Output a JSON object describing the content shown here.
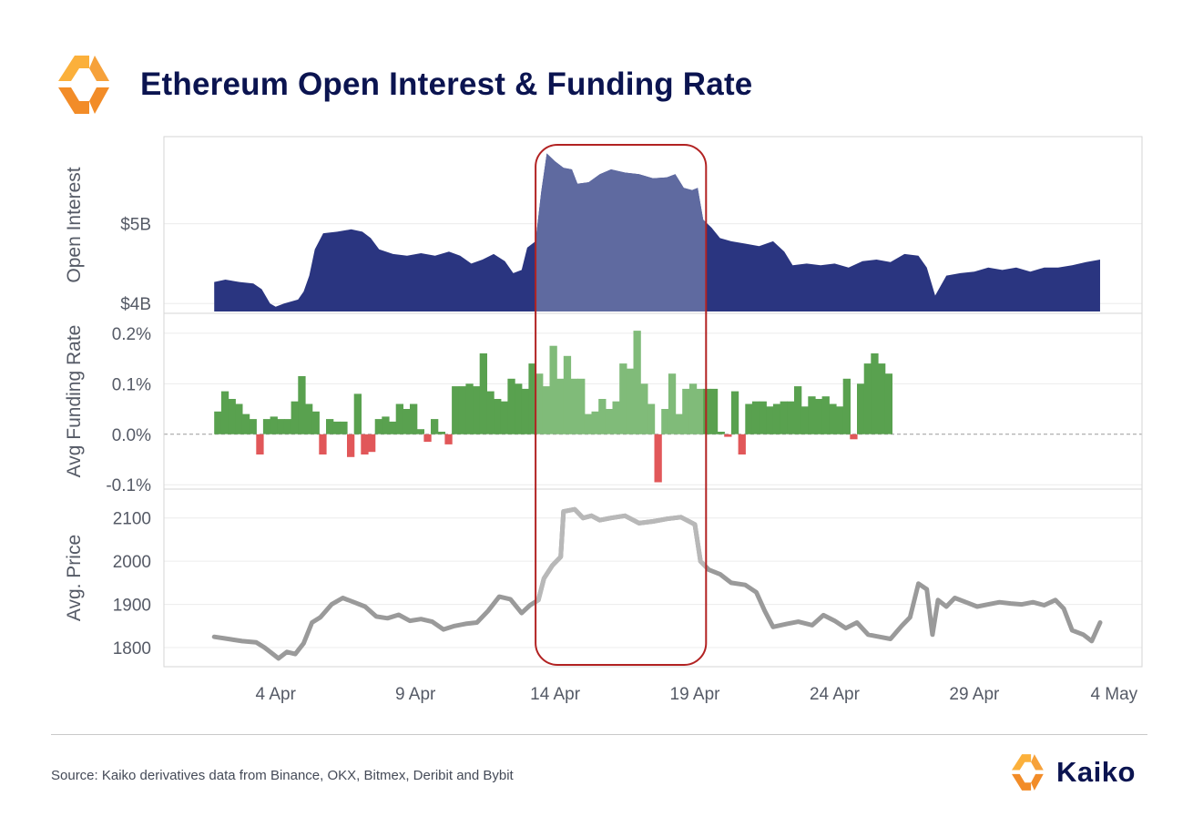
{
  "title": "Ethereum Open Interest & Funding Rate",
  "source": "Source: Kaiko derivatives data from Binance, OKX, Bitmex, Deribit and Bybit",
  "brand": "Kaiko",
  "colors": {
    "title": "#0b1450",
    "open_interest": "#2a3580",
    "oi_highlight": "#5f6aa0",
    "funding_positive": "#59a14f",
    "funding_positive_highlight": "#80bb79",
    "funding_negative": "#e15759",
    "price": "#9a9a9a",
    "price_highlight": "#b8b8b8",
    "highlight_box": "#b22222",
    "logo_orange": "#f28c28",
    "logo_yellow": "#fbb03b"
  },
  "chart_data": {
    "type": "area+bar+line",
    "x_ticks": [
      "4 Apr",
      "9 Apr",
      "14 Apr",
      "19 Apr",
      "24 Apr",
      "29 Apr",
      "4 May"
    ],
    "x_tick_days": [
      4,
      9,
      14,
      19,
      24,
      29,
      34
    ],
    "x_range_days": [
      0,
      35
    ],
    "highlight_range_days": [
      13.3,
      19.4
    ],
    "panels": [
      {
        "name": "open_interest",
        "ylabel": "Open Interest",
        "type": "area",
        "yticks": [
          "$4B",
          "$5B"
        ],
        "ytick_values": [
          4.0,
          5.0
        ],
        "ylim": [
          3.9,
          6.0
        ],
        "points": [
          [
            1.8,
            4.27
          ],
          [
            2.2,
            4.3
          ],
          [
            2.7,
            4.27
          ],
          [
            3.2,
            4.25
          ],
          [
            3.5,
            4.18
          ],
          [
            3.8,
            4.0
          ],
          [
            4.0,
            3.96
          ],
          [
            4.3,
            4.0
          ],
          [
            4.8,
            4.05
          ],
          [
            5.0,
            4.15
          ],
          [
            5.2,
            4.35
          ],
          [
            5.4,
            4.68
          ],
          [
            5.7,
            4.88
          ],
          [
            6.2,
            4.9
          ],
          [
            6.7,
            4.93
          ],
          [
            7.1,
            4.9
          ],
          [
            7.4,
            4.82
          ],
          [
            7.7,
            4.68
          ],
          [
            8.2,
            4.62
          ],
          [
            8.7,
            4.6
          ],
          [
            9.2,
            4.63
          ],
          [
            9.7,
            4.6
          ],
          [
            10.2,
            4.65
          ],
          [
            10.6,
            4.6
          ],
          [
            11.0,
            4.5
          ],
          [
            11.4,
            4.55
          ],
          [
            11.8,
            4.62
          ],
          [
            12.2,
            4.53
          ],
          [
            12.5,
            4.38
          ],
          [
            12.8,
            4.42
          ],
          [
            13.0,
            4.7
          ],
          [
            13.3,
            4.78
          ],
          [
            13.5,
            5.4
          ],
          [
            13.7,
            5.88
          ],
          [
            14.0,
            5.78
          ],
          [
            14.3,
            5.7
          ],
          [
            14.6,
            5.68
          ],
          [
            14.8,
            5.5
          ],
          [
            15.2,
            5.52
          ],
          [
            15.6,
            5.62
          ],
          [
            16.0,
            5.68
          ],
          [
            16.5,
            5.64
          ],
          [
            17.0,
            5.62
          ],
          [
            17.5,
            5.57
          ],
          [
            18.0,
            5.58
          ],
          [
            18.3,
            5.62
          ],
          [
            18.6,
            5.45
          ],
          [
            18.9,
            5.42
          ],
          [
            19.1,
            5.45
          ],
          [
            19.3,
            5.05
          ],
          [
            19.6,
            4.95
          ],
          [
            19.9,
            4.82
          ],
          [
            20.3,
            4.78
          ],
          [
            20.8,
            4.75
          ],
          [
            21.3,
            4.72
          ],
          [
            21.8,
            4.78
          ],
          [
            22.2,
            4.65
          ],
          [
            22.5,
            4.48
          ],
          [
            23.0,
            4.5
          ],
          [
            23.5,
            4.48
          ],
          [
            24.0,
            4.5
          ],
          [
            24.5,
            4.45
          ],
          [
            25.0,
            4.53
          ],
          [
            25.5,
            4.55
          ],
          [
            26.0,
            4.52
          ],
          [
            26.5,
            4.62
          ],
          [
            27.0,
            4.6
          ],
          [
            27.3,
            4.45
          ],
          [
            27.6,
            4.1
          ],
          [
            28.0,
            4.35
          ],
          [
            28.5,
            4.38
          ],
          [
            29.0,
            4.4
          ],
          [
            29.5,
            4.45
          ],
          [
            30.0,
            4.42
          ],
          [
            30.5,
            4.45
          ],
          [
            31.0,
            4.4
          ],
          [
            31.5,
            4.45
          ],
          [
            32.0,
            4.45
          ],
          [
            32.5,
            4.48
          ],
          [
            33.0,
            4.52
          ],
          [
            33.5,
            4.55
          ]
        ]
      },
      {
        "name": "funding_rate",
        "ylabel": "Avg Funding Rate",
        "type": "bar",
        "yticks": [
          "0.2%",
          "0.1%",
          "0.0%",
          "-0.1%"
        ],
        "ytick_values": [
          0.2,
          0.1,
          0.0,
          -0.1
        ],
        "ylim": [
          -0.105,
          0.225
        ],
        "bar_width_days": 0.25,
        "values": [
          0.045,
          0.085,
          0.07,
          0.06,
          0.04,
          0.03,
          -0.04,
          0.03,
          0.035,
          0.03,
          0.03,
          0.065,
          0.115,
          0.06,
          0.045,
          -0.04,
          0.03,
          0.025,
          0.025,
          -0.045,
          0.08,
          -0.04,
          -0.035,
          0.03,
          0.035,
          0.025,
          0.06,
          0.05,
          0.06,
          0.01,
          -0.015,
          0.03,
          0.005,
          -0.02,
          0.095,
          0.095,
          0.1,
          0.095,
          0.16,
          0.085,
          0.07,
          0.065,
          0.11,
          0.1,
          0.09,
          0.14,
          0.12,
          0.095,
          0.175,
          0.11,
          0.155,
          0.11,
          0.11,
          0.04,
          0.045,
          0.07,
          0.05,
          0.065,
          0.14,
          0.13,
          0.205,
          0.1,
          0.06,
          -0.095,
          0.05,
          0.12,
          0.04,
          0.09,
          0.1,
          0.09,
          0.09,
          0.09,
          0.005,
          -0.005,
          0.085,
          -0.04,
          0.06,
          0.065,
          0.065,
          0.055,
          0.06,
          0.065,
          0.065,
          0.095,
          0.055,
          0.075,
          0.07,
          0.075,
          0.06,
          0.055,
          0.11,
          -0.01,
          0.1,
          0.14,
          0.16,
          0.14,
          0.12
        ]
      },
      {
        "name": "price",
        "ylabel": "Avg. Price",
        "type": "line",
        "yticks": [
          "2100",
          "2000",
          "1900",
          "1800"
        ],
        "ytick_values": [
          2100,
          2000,
          1900,
          1800
        ],
        "ylim": [
          1760,
          2150
        ],
        "points": [
          [
            1.8,
            1825
          ],
          [
            2.3,
            1820
          ],
          [
            2.8,
            1815
          ],
          [
            3.3,
            1812
          ],
          [
            3.6,
            1800
          ],
          [
            3.9,
            1785
          ],
          [
            4.1,
            1775
          ],
          [
            4.4,
            1790
          ],
          [
            4.7,
            1785
          ],
          [
            5.0,
            1810
          ],
          [
            5.3,
            1858
          ],
          [
            5.6,
            1870
          ],
          [
            6.0,
            1900
          ],
          [
            6.4,
            1915
          ],
          [
            6.8,
            1905
          ],
          [
            7.2,
            1895
          ],
          [
            7.6,
            1872
          ],
          [
            8.0,
            1868
          ],
          [
            8.4,
            1876
          ],
          [
            8.8,
            1862
          ],
          [
            9.2,
            1866
          ],
          [
            9.6,
            1860
          ],
          [
            10.0,
            1842
          ],
          [
            10.4,
            1850
          ],
          [
            10.8,
            1855
          ],
          [
            11.2,
            1858
          ],
          [
            11.6,
            1885
          ],
          [
            12.0,
            1918
          ],
          [
            12.4,
            1912
          ],
          [
            12.8,
            1880
          ],
          [
            13.1,
            1898
          ],
          [
            13.4,
            1910
          ],
          [
            13.6,
            1960
          ],
          [
            13.9,
            1990
          ],
          [
            14.2,
            2010
          ],
          [
            14.3,
            2115
          ],
          [
            14.7,
            2120
          ],
          [
            15.0,
            2100
          ],
          [
            15.3,
            2105
          ],
          [
            15.6,
            2095
          ],
          [
            16.0,
            2100
          ],
          [
            16.5,
            2105
          ],
          [
            17.0,
            2088
          ],
          [
            17.5,
            2092
          ],
          [
            18.0,
            2098
          ],
          [
            18.5,
            2102
          ],
          [
            19.0,
            2085
          ],
          [
            19.2,
            2000
          ],
          [
            19.5,
            1980
          ],
          [
            19.9,
            1970
          ],
          [
            20.3,
            1950
          ],
          [
            20.8,
            1945
          ],
          [
            21.2,
            1928
          ],
          [
            21.5,
            1885
          ],
          [
            21.8,
            1848
          ],
          [
            22.3,
            1855
          ],
          [
            22.7,
            1860
          ],
          [
            23.2,
            1852
          ],
          [
            23.6,
            1875
          ],
          [
            24.0,
            1862
          ],
          [
            24.4,
            1845
          ],
          [
            24.8,
            1858
          ],
          [
            25.2,
            1830
          ],
          [
            25.6,
            1825
          ],
          [
            26.0,
            1820
          ],
          [
            26.4,
            1850
          ],
          [
            26.7,
            1870
          ],
          [
            27.0,
            1948
          ],
          [
            27.3,
            1935
          ],
          [
            27.5,
            1830
          ],
          [
            27.7,
            1910
          ],
          [
            28.0,
            1895
          ],
          [
            28.3,
            1915
          ],
          [
            28.7,
            1905
          ],
          [
            29.1,
            1895
          ],
          [
            29.5,
            1900
          ],
          [
            29.9,
            1905
          ],
          [
            30.3,
            1902
          ],
          [
            30.7,
            1900
          ],
          [
            31.1,
            1905
          ],
          [
            31.5,
            1898
          ],
          [
            31.9,
            1910
          ],
          [
            32.2,
            1890
          ],
          [
            32.5,
            1840
          ],
          [
            32.9,
            1830
          ],
          [
            33.2,
            1815
          ],
          [
            33.5,
            1858
          ]
        ]
      }
    ]
  }
}
